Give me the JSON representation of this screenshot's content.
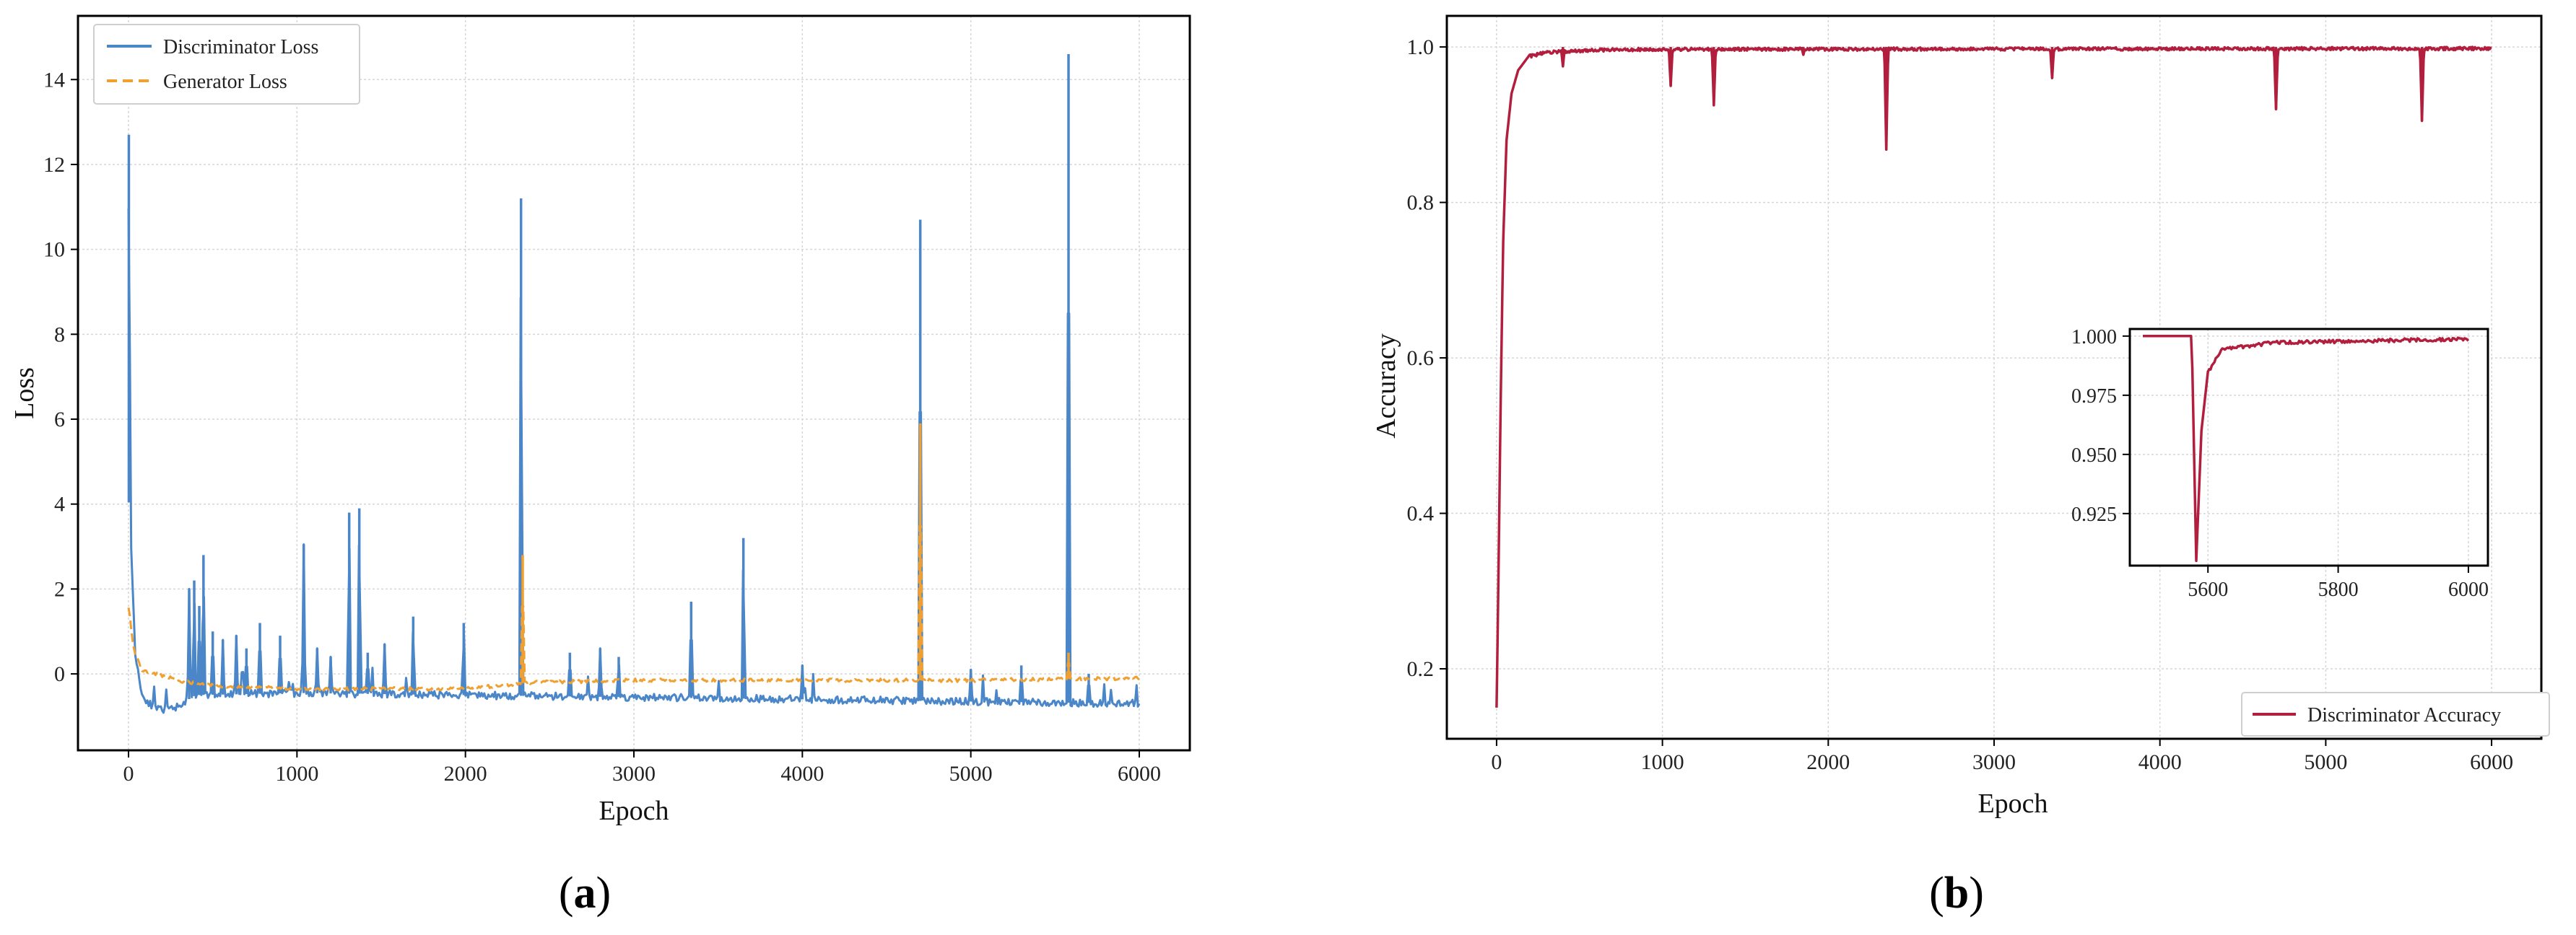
{
  "colors": {
    "discriminator_loss": "#4a86c8",
    "generator_loss": "#f0a030",
    "discriminator_accuracy": "#b21f3e",
    "grid": "#d6d6d6",
    "frame": "#000000"
  },
  "panels": {
    "a": {
      "label_prefix": "(",
      "label_letter": "a",
      "label_suffix": ")"
    },
    "b": {
      "label_prefix": "(",
      "label_letter": "b",
      "label_suffix": ")"
    }
  },
  "chart_data": [
    {
      "id": "a",
      "type": "line",
      "title": "",
      "xlabel": "Epoch",
      "ylabel": "Loss",
      "xlim": [
        -300,
        6300
      ],
      "ylim": [
        -1.8,
        15.5
      ],
      "xticks": [
        0,
        1000,
        2000,
        3000,
        4000,
        5000,
        6000
      ],
      "xtick_labels": [
        "0",
        "1000",
        "2000",
        "3000",
        "4000",
        "5000",
        "6000"
      ],
      "yticks": [
        0,
        2,
        4,
        6,
        8,
        10,
        12,
        14
      ],
      "ytick_labels": [
        "0",
        "2",
        "4",
        "6",
        "8",
        "10",
        "12",
        "14"
      ],
      "grid": true,
      "legend_position": "top-left",
      "series": [
        {
          "name": "Discriminator Loss",
          "style": "solid",
          "baseline": [
            [
              0,
              4.2
            ],
            [
              15,
              3.0
            ],
            [
              40,
              0.5
            ],
            [
              80,
              -0.5
            ],
            [
              150,
              -0.8
            ],
            [
              250,
              -0.85
            ],
            [
              400,
              -0.5
            ],
            [
              1000,
              -0.45
            ],
            [
              2000,
              -0.5
            ],
            [
              3000,
              -0.55
            ],
            [
              4000,
              -0.6
            ],
            [
              5000,
              -0.65
            ],
            [
              6000,
              -0.7
            ]
          ],
          "spikes": [
            [
              2,
              12.7
            ],
            [
              360,
              2.0
            ],
            [
              390,
              2.2
            ],
            [
              420,
              1.6
            ],
            [
              445,
              2.8
            ],
            [
              500,
              1.0
            ],
            [
              560,
              0.8
            ],
            [
              640,
              0.9
            ],
            [
              700,
              0.6
            ],
            [
              780,
              1.2
            ],
            [
              900,
              0.9
            ],
            [
              1040,
              3.05
            ],
            [
              1120,
              0.6
            ],
            [
              1200,
              0.4
            ],
            [
              1310,
              3.8
            ],
            [
              1370,
              3.9
            ],
            [
              1420,
              0.5
            ],
            [
              1520,
              0.7
            ],
            [
              1690,
              1.35
            ],
            [
              1990,
              1.2
            ],
            [
              2330,
              11.2
            ],
            [
              2620,
              0.5
            ],
            [
              2800,
              0.6
            ],
            [
              2910,
              0.4
            ],
            [
              3340,
              1.7
            ],
            [
              3650,
              3.2
            ],
            [
              4000,
              0.2
            ],
            [
              4700,
              10.7
            ],
            [
              5000,
              0.1
            ],
            [
              5300,
              0.2
            ],
            [
              5580,
              14.6
            ],
            [
              5700,
              0.0
            ]
          ]
        },
        {
          "name": "Generator Loss",
          "style": "dashed",
          "baseline": [
            [
              0,
              1.6
            ],
            [
              30,
              0.6
            ],
            [
              80,
              0.1
            ],
            [
              200,
              -0.05
            ],
            [
              350,
              -0.2
            ],
            [
              600,
              -0.3
            ],
            [
              1000,
              -0.35
            ],
            [
              2000,
              -0.35
            ],
            [
              2400,
              -0.2
            ],
            [
              3000,
              -0.15
            ],
            [
              4000,
              -0.15
            ],
            [
              5000,
              -0.15
            ],
            [
              6000,
              -0.1
            ]
          ],
          "spikes": [
            [
              2340,
              2.8
            ],
            [
              4700,
              5.9
            ],
            [
              5580,
              0.5
            ]
          ]
        }
      ]
    },
    {
      "id": "b",
      "type": "line",
      "title": "",
      "xlabel": "Epoch",
      "ylabel": "Accuracy",
      "xlim": [
        -300,
        6300
      ],
      "ylim": [
        0.11,
        1.04
      ],
      "xticks": [
        0,
        1000,
        2000,
        3000,
        4000,
        5000,
        6000
      ],
      "xtick_labels": [
        "0",
        "1000",
        "2000",
        "3000",
        "4000",
        "5000",
        "6000"
      ],
      "yticks": [
        0.2,
        0.4,
        0.6,
        0.8,
        1.0
      ],
      "ytick_labels": [
        "0.2",
        "0.4",
        "0.6",
        "0.8",
        "1.0"
      ],
      "grid": true,
      "legend_position": "bottom-right",
      "series": [
        {
          "name": "Discriminator Accuracy",
          "baseline": [
            [
              0,
              0.15
            ],
            [
              10,
              0.3
            ],
            [
              25,
              0.55
            ],
            [
              40,
              0.75
            ],
            [
              60,
              0.88
            ],
            [
              90,
              0.94
            ],
            [
              130,
              0.97
            ],
            [
              200,
              0.99
            ],
            [
              300,
              0.995
            ],
            [
              600,
              0.998
            ],
            [
              1000,
              0.999
            ],
            [
              6000,
              1.0
            ]
          ],
          "dips": [
            [
              400,
              0.975
            ],
            [
              1050,
              0.95
            ],
            [
              1310,
              0.925
            ],
            [
              1850,
              0.99
            ],
            [
              2350,
              0.868
            ],
            [
              3350,
              0.96
            ],
            [
              4700,
              0.92
            ],
            [
              5580,
              0.905
            ]
          ]
        }
      ],
      "inset": {
        "xlim": [
          5480,
          6030
        ],
        "ylim": [
          0.903,
          1.003
        ],
        "xticks": [
          5600,
          5800,
          6000
        ],
        "xtick_labels": [
          "5600",
          "5800",
          "6000"
        ],
        "yticks": [
          0.925,
          0.95,
          0.975,
          1.0
        ],
        "ytick_labels": [
          "0.925",
          "0.950",
          "0.975",
          "1.000"
        ],
        "baseline": [
          [
            5500,
            1.0
          ],
          [
            5575,
            1.0
          ],
          [
            5582,
            0.905
          ],
          [
            5590,
            0.96
          ],
          [
            5600,
            0.985
          ],
          [
            5620,
            0.995
          ],
          [
            5700,
            0.998
          ],
          [
            6000,
            0.9995
          ]
        ],
        "minor_dips": [
          [
            5660,
            0.996
          ],
          [
            5730,
            0.997
          ],
          [
            5850,
            0.998
          ]
        ]
      }
    }
  ]
}
